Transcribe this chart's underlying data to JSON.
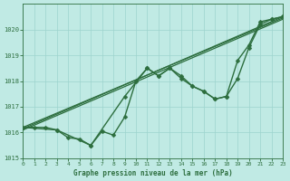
{
  "title": "Graphe pression niveau de la mer (hPa)",
  "background_color": "#c0eae4",
  "grid_color": "#9dd4ce",
  "line_color": "#2d6e3e",
  "xlim": [
    0,
    23
  ],
  "ylim": [
    1015,
    1021
  ],
  "xticks": [
    0,
    1,
    2,
    3,
    4,
    5,
    6,
    7,
    8,
    9,
    10,
    11,
    12,
    13,
    14,
    15,
    16,
    17,
    18,
    19,
    20,
    21,
    22,
    23
  ],
  "yticks": [
    1015,
    1016,
    1017,
    1018,
    1019,
    1020
  ],
  "series": [
    {
      "x": [
        0,
        1,
        2,
        3,
        4,
        5,
        6,
        7,
        8,
        9,
        10,
        11,
        12,
        13,
        14,
        15,
        16,
        17,
        18,
        19,
        20,
        21,
        22,
        23
      ],
      "y": [
        1016.2,
        1016.2,
        1016.2,
        1016.1,
        1015.8,
        1015.75,
        1015.5,
        1016.05,
        1015.9,
        1016.6,
        1018.0,
        1018.5,
        1018.2,
        1018.5,
        1018.2,
        1017.8,
        1017.6,
        1017.3,
        1017.4,
        1018.1,
        1019.3,
        1020.2,
        1020.4,
        1020.5
      ],
      "marker": "D",
      "markersize": 2.5,
      "linewidth": 1.0
    },
    {
      "x": [
        0,
        3,
        6,
        9,
        11,
        12,
        13,
        14,
        15,
        16,
        17,
        18,
        19,
        20,
        21,
        22,
        23
      ],
      "y": [
        1016.2,
        1016.1,
        1015.5,
        1017.4,
        1018.5,
        1018.2,
        1018.5,
        1018.1,
        1017.8,
        1017.6,
        1017.3,
        1017.4,
        1018.8,
        1019.4,
        1020.3,
        1020.4,
        1020.5
      ],
      "marker": "D",
      "markersize": 2.5,
      "linewidth": 1.0
    },
    {
      "x": [
        0,
        23
      ],
      "y": [
        1016.1,
        1020.4
      ],
      "marker": null,
      "markersize": 0,
      "linewidth": 0.9
    },
    {
      "x": [
        0,
        23
      ],
      "y": [
        1016.15,
        1020.5
      ],
      "marker": null,
      "markersize": 0,
      "linewidth": 0.9
    },
    {
      "x": [
        0,
        23
      ],
      "y": [
        1016.2,
        1020.45
      ],
      "marker": null,
      "markersize": 0,
      "linewidth": 0.9
    }
  ]
}
